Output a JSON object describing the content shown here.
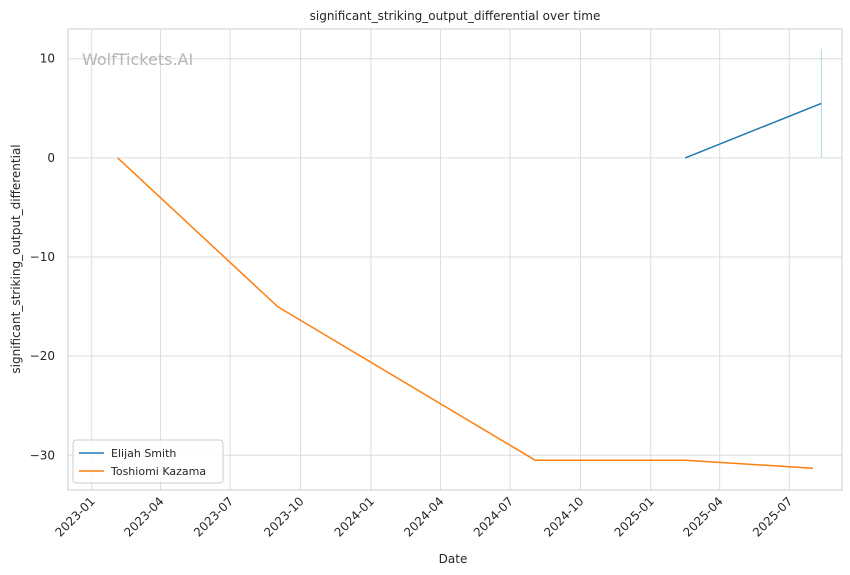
{
  "watermark": "WolfTickets.AI",
  "chart_data": {
    "type": "line",
    "title": "significant_striking_output_differential over time",
    "xlabel": "Date",
    "ylabel": "significant_striking_output_differential",
    "x_ticks": [
      "2023-01",
      "2023-04",
      "2023-07",
      "2023-10",
      "2024-01",
      "2024-04",
      "2024-07",
      "2024-10",
      "2025-01",
      "2025-04",
      "2025-07"
    ],
    "y_ticks": [
      10,
      0,
      -10,
      -20,
      -30
    ],
    "xlim": [
      "2022-12-01",
      "2025-09-08"
    ],
    "ylim": [
      -33.5,
      13
    ],
    "grid": true,
    "legend_position": "lower-left",
    "series": [
      {
        "name": "Elijah Smith",
        "color": "#1f77b4",
        "x": [
          "2025-02-15",
          "2025-08-12"
        ],
        "y": [
          0,
          5.5
        ]
      },
      {
        "name": "Toshiomi Kazama",
        "color": "#ff7f0e",
        "x": [
          "2023-02-04",
          "2023-09-01",
          "2024-08-03",
          "2025-02-15",
          "2025-08-01"
        ],
        "y": [
          0,
          -15,
          -30.5,
          -30.5,
          -31.3
        ]
      }
    ],
    "annotations": [
      {
        "type": "vline",
        "x": "2025-08-12",
        "y_range": [
          0,
          11
        ],
        "color": "#add8e6"
      }
    ]
  }
}
